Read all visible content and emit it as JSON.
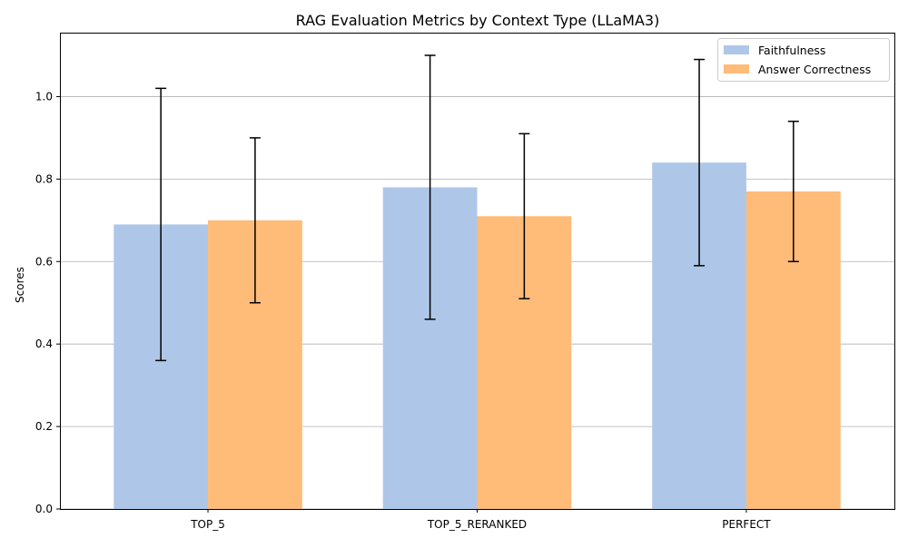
{
  "chart_data": {
    "type": "bar",
    "title": "RAG Evaluation Metrics by Context Type (LLaMA3)",
    "xlabel": "",
    "ylabel": "Scores",
    "categories": [
      "TOP_5",
      "TOP_5_RERANKED",
      "PERFECT"
    ],
    "ylim": [
      0,
      1.155
    ],
    "yticks": [
      "0.0",
      "0.2",
      "0.4",
      "0.6",
      "0.8",
      "1.0"
    ],
    "grid": "horizontal",
    "legend_position": "top-right",
    "series": [
      {
        "name": "Faithfulness",
        "color": "#aec7e8",
        "values": [
          0.69,
          0.78,
          0.84
        ],
        "error_low": [
          0.36,
          0.46,
          0.59
        ],
        "error_high": [
          1.02,
          1.1,
          1.09
        ]
      },
      {
        "name": "Answer Correctness",
        "color": "#ffbb78",
        "values": [
          0.7,
          0.71,
          0.77
        ],
        "error_low": [
          0.5,
          0.51,
          0.6
        ],
        "error_high": [
          0.9,
          0.91,
          0.94
        ]
      }
    ]
  }
}
